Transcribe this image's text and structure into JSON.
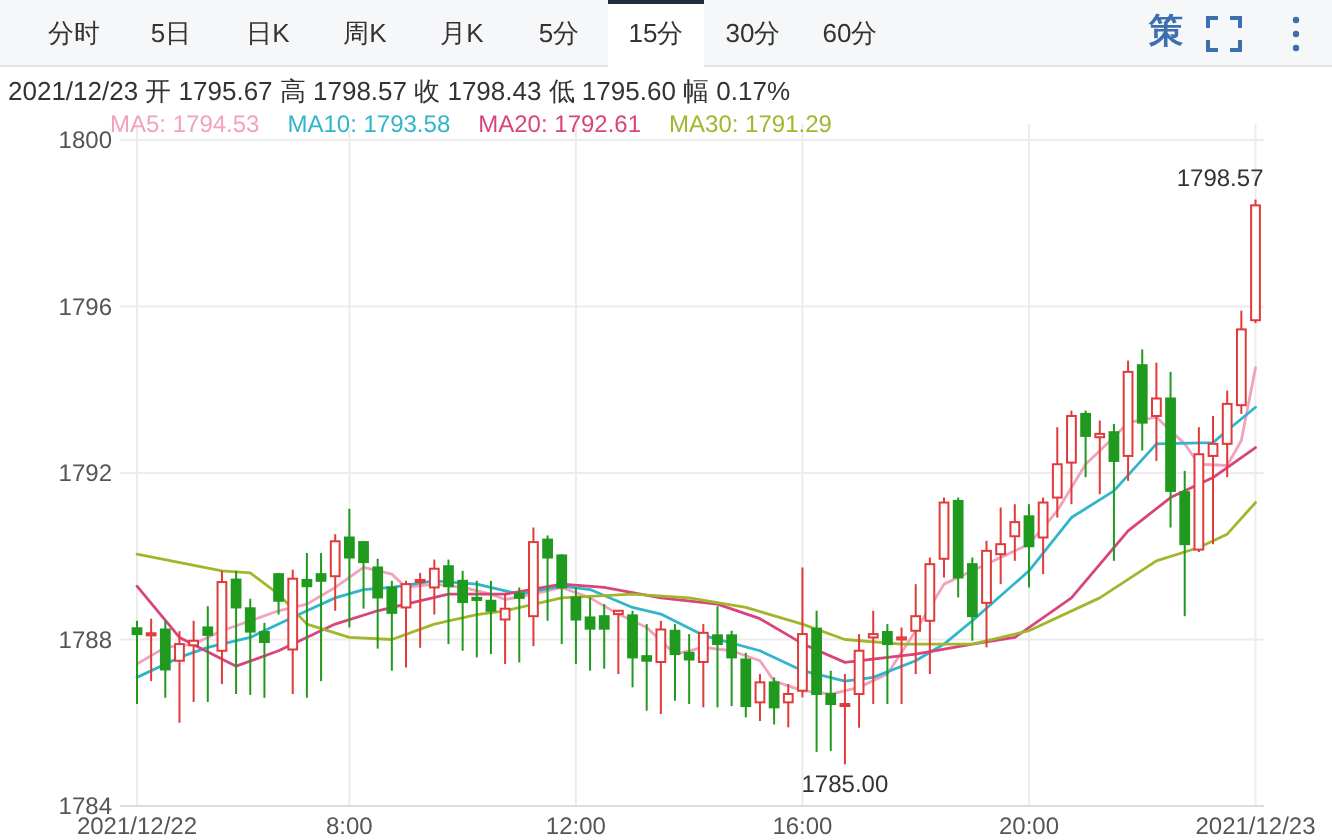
{
  "chart_data": {
    "type": "candlestick",
    "subtitle": "2021/12/23  开 1795.67  高 1798.57  收 1798.43  低 1795.60  幅 0.17%",
    "annotations": [
      "分时",
      "5日",
      "日K",
      "周K",
      "月K",
      "5分",
      "15分",
      "30分",
      "60分",
      "策",
      {
        "text": "1798.57",
        "x": 24,
        "y": 1798.57
      },
      {
        "text": "1785.00",
        "x": 16.75,
        "y": 1785.0
      }
    ],
    "x": [
      4.25,
      4.5,
      4.75,
      5,
      5.25,
      5.5,
      5.75,
      6,
      6.25,
      6.5,
      6.75,
      7,
      7.25,
      7.5,
      7.75,
      8,
      8.25,
      8.5,
      8.75,
      9,
      9.25,
      9.5,
      9.75,
      10,
      10.25,
      10.5,
      10.75,
      11,
      11.25,
      11.5,
      11.75,
      12,
      12.25,
      12.5,
      12.75,
      13,
      13.25,
      13.5,
      13.75,
      14,
      14.25,
      14.5,
      14.75,
      15,
      15.25,
      15.5,
      15.75,
      16,
      16.25,
      16.5,
      16.75,
      17,
      17.25,
      17.5,
      17.75,
      18,
      18.25,
      18.5,
      18.75,
      19,
      19.25,
      19.5,
      19.75,
      20,
      20.25,
      20.5,
      20.75,
      21,
      21.25,
      21.5,
      21.75,
      22,
      22.25,
      22.5,
      22.75,
      23,
      23.25,
      23.5,
      23.75,
      24
    ],
    "ohlc": [
      [
        1788.27,
        1788.45,
        1786.45,
        1788.13
      ],
      [
        1788.1,
        1788.5,
        1787.0,
        1788.15
      ],
      [
        1788.24,
        1788.45,
        1786.6,
        1787.28
      ],
      [
        1787.49,
        1788.2,
        1786.0,
        1787.89
      ],
      [
        1787.86,
        1788.45,
        1786.5,
        1787.97
      ],
      [
        1788.29,
        1788.8,
        1786.5,
        1788.11
      ],
      [
        1787.73,
        1789.65,
        1786.93,
        1789.38
      ],
      [
        1789.44,
        1789.65,
        1786.69,
        1788.77
      ],
      [
        1788.75,
        1788.98,
        1786.67,
        1788.19
      ],
      [
        1788.18,
        1788.4,
        1786.6,
        1787.94
      ],
      [
        1789.57,
        1789.6,
        1788.6,
        1788.93
      ],
      [
        1787.76,
        1789.68,
        1786.69,
        1789.46
      ],
      [
        1789.43,
        1790.08,
        1786.6,
        1789.28
      ],
      [
        1789.57,
        1790.08,
        1787.0,
        1789.41
      ],
      [
        1789.52,
        1790.53,
        1788.69,
        1790.36
      ],
      [
        1790.45,
        1791.14,
        1788.29,
        1789.97
      ],
      [
        1790.34,
        1790.34,
        1788.74,
        1789.86
      ],
      [
        1789.73,
        1789.94,
        1787.78,
        1789.01
      ],
      [
        1789.25,
        1789.41,
        1787.25,
        1788.64
      ],
      [
        1788.77,
        1789.41,
        1787.33,
        1789.33
      ],
      [
        1789.4,
        1789.6,
        1787.8,
        1789.43
      ],
      [
        1789.25,
        1789.92,
        1788.6,
        1789.7
      ],
      [
        1789.76,
        1789.92,
        1787.89,
        1789.28
      ],
      [
        1789.41,
        1789.65,
        1787.73,
        1788.9
      ],
      [
        1789.0,
        1789.41,
        1787.57,
        1788.95
      ],
      [
        1788.93,
        1789.41,
        1787.65,
        1788.69
      ],
      [
        1788.48,
        1789.09,
        1787.41,
        1788.74
      ],
      [
        1789.1,
        1789.25,
        1787.45,
        1789.0
      ],
      [
        1788.56,
        1790.69,
        1787.84,
        1790.34
      ],
      [
        1790.4,
        1790.5,
        1788.45,
        1789.97
      ],
      [
        1790.02,
        1790.05,
        1787.89,
        1789.25
      ],
      [
        1789.01,
        1789.25,
        1787.41,
        1788.48
      ],
      [
        1788.53,
        1789.01,
        1787.25,
        1788.26
      ],
      [
        1788.56,
        1788.85,
        1787.3,
        1788.26
      ],
      [
        1788.61,
        1788.69,
        1787.17,
        1788.69
      ],
      [
        1788.58,
        1788.69,
        1786.85,
        1787.57
      ],
      [
        1787.6,
        1788.37,
        1786.29,
        1787.49
      ],
      [
        1787.46,
        1788.45,
        1786.21,
        1788.24
      ],
      [
        1788.21,
        1788.37,
        1786.53,
        1787.65
      ],
      [
        1787.68,
        1788.13,
        1786.45,
        1787.52
      ],
      [
        1787.46,
        1788.37,
        1786.37,
        1788.16
      ],
      [
        1788.1,
        1788.8,
        1786.37,
        1787.89
      ],
      [
        1788.1,
        1788.21,
        1786.4,
        1787.57
      ],
      [
        1787.52,
        1787.68,
        1786.13,
        1786.4
      ],
      [
        1786.49,
        1787.17,
        1786.04,
        1786.97
      ],
      [
        1786.97,
        1787.09,
        1785.96,
        1786.37
      ],
      [
        1786.49,
        1786.93,
        1785.89,
        1786.69
      ],
      [
        1786.77,
        1789.73,
        1786.61,
        1788.13
      ],
      [
        1788.26,
        1788.69,
        1785.3,
        1786.69
      ],
      [
        1786.69,
        1787.25,
        1785.32,
        1786.45
      ],
      [
        1786.42,
        1787.17,
        1785.0,
        1786.45
      ],
      [
        1786.69,
        1788.13,
        1785.88,
        1787.73
      ],
      [
        1788.05,
        1788.69,
        1786.45,
        1788.13
      ],
      [
        1788.18,
        1788.37,
        1786.45,
        1787.89
      ],
      [
        1788.0,
        1788.29,
        1786.45,
        1788.05
      ],
      [
        1788.21,
        1789.33,
        1787.17,
        1788.56
      ],
      [
        1788.45,
        1789.97,
        1787.17,
        1789.81
      ],
      [
        1789.94,
        1791.41,
        1789.49,
        1791.29
      ],
      [
        1791.33,
        1791.41,
        1789.01,
        1789.49
      ],
      [
        1789.81,
        1789.97,
        1787.97,
        1788.56
      ],
      [
        1788.88,
        1790.37,
        1787.81,
        1790.13
      ],
      [
        1790.05,
        1791.17,
        1789.33,
        1790.29
      ],
      [
        1790.48,
        1791.25,
        1789.89,
        1790.82
      ],
      [
        1790.96,
        1791.25,
        1789.25,
        1790.24
      ],
      [
        1790.45,
        1791.41,
        1789.57,
        1791.29
      ],
      [
        1791.41,
        1793.1,
        1790.93,
        1792.21
      ],
      [
        1792.25,
        1793.5,
        1791.25,
        1793.37
      ],
      [
        1793.42,
        1793.5,
        1791.9,
        1792.89
      ],
      [
        1792.86,
        1793.26,
        1791.49,
        1792.94
      ],
      [
        1792.98,
        1793.18,
        1789.89,
        1792.29
      ],
      [
        1792.41,
        1794.7,
        1791.81,
        1794.43
      ],
      [
        1794.59,
        1794.97,
        1792.54,
        1793.21
      ],
      [
        1793.37,
        1794.65,
        1792.29,
        1793.79
      ],
      [
        1793.79,
        1794.43,
        1790.69,
        1791.57
      ],
      [
        1791.54,
        1792.05,
        1788.56,
        1790.29
      ],
      [
        1790.16,
        1793.1,
        1790.1,
        1792.45
      ],
      [
        1792.41,
        1793.37,
        1790.29,
        1792.7
      ],
      [
        1792.7,
        1793.98,
        1791.9,
        1793.66
      ],
      [
        1793.63,
        1795.9,
        1793.42,
        1795.45
      ],
      [
        1795.67,
        1798.57,
        1795.6,
        1798.43
      ]
    ],
    "colors": [
      "#1f9a1f",
      "#e03a3a",
      "#1f9a1f",
      "#e03a3a",
      "#e03a3a",
      "#1f9a1f",
      "#e03a3a",
      "#1f9a1f",
      "#1f9a1f",
      "#1f9a1f",
      "#1f9a1f",
      "#e03a3a",
      "#1f9a1f",
      "#1f9a1f",
      "#e03a3a",
      "#1f9a1f",
      "#1f9a1f",
      "#1f9a1f",
      "#1f9a1f",
      "#e03a3a",
      "#e03a3a",
      "#e03a3a",
      "#1f9a1f",
      "#1f9a1f",
      "#1f9a1f",
      "#1f9a1f",
      "#e03a3a",
      "#1f9a1f",
      "#e03a3a",
      "#1f9a1f",
      "#1f9a1f",
      "#1f9a1f",
      "#1f9a1f",
      "#1f9a1f",
      "#e03a3a",
      "#1f9a1f",
      "#1f9a1f",
      "#e03a3a",
      "#1f9a1f",
      "#1f9a1f",
      "#e03a3a",
      "#1f9a1f",
      "#1f9a1f",
      "#1f9a1f",
      "#e03a3a",
      "#1f9a1f",
      "#e03a3a",
      "#e03a3a",
      "#1f9a1f",
      "#1f9a1f",
      "#e03a3a",
      "#e03a3a",
      "#e03a3a",
      "#1f9a1f",
      "#e03a3a",
      "#e03a3a",
      "#e03a3a",
      "#e03a3a",
      "#1f9a1f",
      "#1f9a1f",
      "#e03a3a",
      "#e03a3a",
      "#e03a3a",
      "#1f9a1f",
      "#e03a3a",
      "#e03a3a",
      "#e03a3a",
      "#1f9a1f",
      "#e03a3a",
      "#1f9a1f",
      "#e03a3a",
      "#1f9a1f",
      "#e03a3a",
      "#1f9a1f",
      "#1f9a1f",
      "#e03a3a",
      "#e03a3a",
      "#e03a3a",
      "#e03a3a",
      "#e03a3a"
    ],
    "series": [
      {
        "name": "MA5: 1794.53",
        "type": "line",
        "color": "#f2a2bd",
        "x": [
          4.25,
          4.75,
          5.25,
          5.75,
          6.25,
          6.75,
          7.25,
          7.75,
          8.25,
          8.75,
          9,
          9.5,
          10,
          10.5,
          10.75,
          11.25,
          11.75,
          12.25,
          12.75,
          13.25,
          13.75,
          14.25,
          14.75,
          15.25,
          15.5,
          16,
          16.5,
          17,
          17.5,
          18,
          18.5,
          19,
          19.5,
          20,
          20.5,
          21,
          21.5,
          21.75,
          22.25,
          22.75,
          23,
          23.5,
          23.75,
          24
        ],
        "values": [
          1787.41,
          1787.81,
          1787.89,
          1788.21,
          1788.45,
          1788.69,
          1788.85,
          1789.25,
          1789.73,
          1789.57,
          1789.25,
          1789.33,
          1789.25,
          1789.09,
          1788.96,
          1789.09,
          1789.25,
          1789.0,
          1788.61,
          1788.29,
          1787.65,
          1787.81,
          1787.73,
          1787.49,
          1787.0,
          1786.77,
          1786.69,
          1786.85,
          1787.17,
          1788.21,
          1789.33,
          1789.65,
          1789.97,
          1790.29,
          1791.09,
          1792.21,
          1792.86,
          1793.21,
          1793.34,
          1792.7,
          1792.21,
          1792.18,
          1792.78,
          1794.53
        ]
      },
      {
        "name": "MA10: 1793.58",
        "type": "line",
        "color": "#30b5cb",
        "x": [
          4.25,
          5,
          5.5,
          6.25,
          6.75,
          7.25,
          7.75,
          8.25,
          8.75,
          9.5,
          10.25,
          11,
          11.75,
          12.25,
          13,
          13.5,
          14.25,
          15.25,
          16,
          16.75,
          17.25,
          18,
          18.5,
          19,
          20,
          20.75,
          21.5,
          22.25,
          23.25,
          23.5,
          24
        ],
        "values": [
          1787.09,
          1787.57,
          1787.81,
          1788.05,
          1788.37,
          1788.69,
          1789.0,
          1789.2,
          1789.25,
          1789.41,
          1789.33,
          1789.09,
          1789.28,
          1789.2,
          1788.77,
          1788.61,
          1788.1,
          1787.73,
          1787.25,
          1787.0,
          1787.09,
          1787.49,
          1787.89,
          1788.45,
          1789.65,
          1790.93,
          1791.57,
          1792.7,
          1792.73,
          1793.02,
          1793.58
        ]
      },
      {
        "name": "MA20: 1792.61",
        "type": "line",
        "color": "#d9447c",
        "x": [
          4.25,
          5,
          6,
          6.75,
          7.75,
          8.5,
          9,
          9.75,
          10.75,
          11.75,
          12.5,
          13.5,
          14.5,
          15.25,
          16,
          16.75,
          18,
          19,
          19.75,
          20.75,
          21.75,
          22.5,
          23.25,
          24
        ],
        "values": [
          1789.28,
          1788.05,
          1787.36,
          1787.73,
          1788.37,
          1788.69,
          1788.85,
          1789.09,
          1789.09,
          1789.33,
          1789.25,
          1789.0,
          1788.85,
          1788.5,
          1787.9,
          1787.45,
          1787.65,
          1787.89,
          1788.05,
          1789.0,
          1790.61,
          1791.41,
          1791.89,
          1792.61
        ]
      },
      {
        "name": "MA30: 1791.29",
        "type": "line",
        "color": "#a2b62c",
        "x": [
          4.25,
          5.75,
          6.25,
          6.75,
          7.25,
          8,
          8.75,
          9.5,
          10.25,
          10.75,
          11.75,
          13,
          14,
          15,
          16,
          16.75,
          17.75,
          19,
          20,
          21.25,
          22.25,
          23,
          23.5,
          24
        ],
        "values": [
          1790.05,
          1789.65,
          1789.6,
          1789.09,
          1788.37,
          1788.05,
          1788.0,
          1788.37,
          1788.6,
          1788.69,
          1789.0,
          1789.09,
          1789.0,
          1788.77,
          1788.37,
          1788.0,
          1787.89,
          1787.89,
          1788.21,
          1789.0,
          1789.89,
          1790.21,
          1790.53,
          1791.29
        ]
      }
    ],
    "xlim": [
      3.95,
      24.15
    ],
    "xticks": [
      {
        "value": 4.25,
        "label": "2021/12/22"
      },
      {
        "value": 8,
        "label": "8:00"
      },
      {
        "value": 12,
        "label": "12:00"
      },
      {
        "value": 16,
        "label": "16:00"
      },
      {
        "value": 20,
        "label": "20:00"
      },
      {
        "value": 24,
        "label": "2021/12/23"
      }
    ],
    "ylim": [
      1784,
      1800
    ],
    "yticks": [
      1784,
      1788,
      1792,
      1796,
      1800
    ],
    "grid": true,
    "legend": "top left"
  }
}
